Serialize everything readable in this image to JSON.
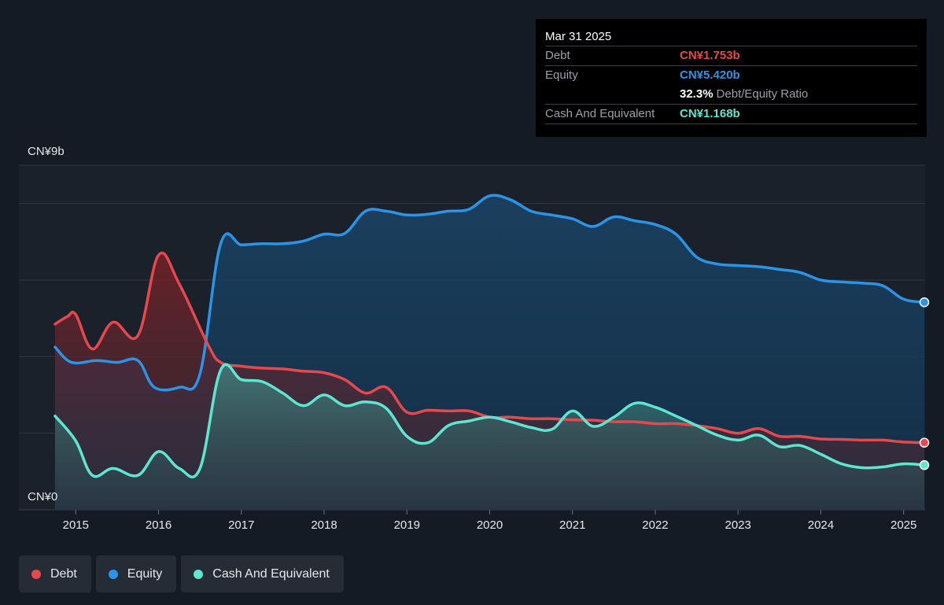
{
  "tooltip": {
    "date": "Mar 31 2025",
    "debt_label": "Debt",
    "debt_value": "CN¥1.753b",
    "equity_label": "Equity",
    "equity_value": "CN¥5.420b",
    "ratio_value": "32.3%",
    "ratio_label": "Debt/Equity Ratio",
    "cash_label": "Cash And Equivalent",
    "cash_value": "CN¥1.168b"
  },
  "legend": [
    {
      "label": "Debt",
      "color": "#e5484d"
    },
    {
      "label": "Equity",
      "color": "#2b94e6"
    },
    {
      "label": "Cash And Equivalent",
      "color": "#5ee6d0"
    }
  ],
  "chart_data": {
    "type": "area",
    "y_axis_labels": [
      "CN¥9b",
      "CN¥0"
    ],
    "ylim": [
      0,
      9
    ],
    "xlim": [
      2014.75,
      2025.25
    ],
    "x_ticks": [
      "2015",
      "2016",
      "2017",
      "2018",
      "2019",
      "2020",
      "2021",
      "2022",
      "2023",
      "2024",
      "2025"
    ],
    "grid": true,
    "legend_position": "bottom-left",
    "colors": {
      "debt": "#e5484d",
      "equity": "#2b94e6",
      "cash": "#5ee6d0"
    },
    "series": [
      {
        "name": "Debt",
        "key": "debt",
        "x": [
          2014.75,
          2014.9,
          2015.0,
          2015.2,
          2015.45,
          2015.75,
          2016.0,
          2016.25,
          2016.6,
          2016.75,
          2017.0,
          2017.25,
          2017.5,
          2017.75,
          2018.0,
          2018.25,
          2018.5,
          2018.75,
          2019.0,
          2019.25,
          2019.5,
          2019.75,
          2020.0,
          2020.25,
          2020.5,
          2020.75,
          2021.0,
          2021.25,
          2021.5,
          2021.75,
          2022.0,
          2022.25,
          2022.5,
          2022.75,
          2023.0,
          2023.25,
          2023.5,
          2023.75,
          2024.0,
          2024.25,
          2024.5,
          2024.75,
          2025.0,
          2025.25
        ],
        "values": [
          4.85,
          5.05,
          5.1,
          4.2,
          4.9,
          4.55,
          6.65,
          5.9,
          4.3,
          3.85,
          3.75,
          3.7,
          3.68,
          3.62,
          3.58,
          3.4,
          3.05,
          3.2,
          2.55,
          2.6,
          2.58,
          2.58,
          2.42,
          2.42,
          2.38,
          2.38,
          2.35,
          2.34,
          2.3,
          2.3,
          2.25,
          2.25,
          2.2,
          2.12,
          2.0,
          2.12,
          1.92,
          1.92,
          1.85,
          1.84,
          1.82,
          1.82,
          1.77,
          1.753
        ]
      },
      {
        "name": "Equity",
        "key": "equity",
        "x": [
          2014.75,
          2014.95,
          2015.25,
          2015.5,
          2015.75,
          2015.95,
          2016.25,
          2016.5,
          2016.75,
          2017.0,
          2017.25,
          2017.5,
          2017.75,
          2018.0,
          2018.25,
          2018.5,
          2018.75,
          2019.0,
          2019.25,
          2019.5,
          2019.75,
          2020.0,
          2020.25,
          2020.5,
          2020.75,
          2021.0,
          2021.25,
          2021.5,
          2021.75,
          2022.0,
          2022.25,
          2022.5,
          2022.75,
          2023.0,
          2023.25,
          2023.5,
          2023.75,
          2024.0,
          2024.25,
          2024.5,
          2024.75,
          2025.0,
          2025.25
        ],
        "values": [
          4.25,
          3.85,
          3.9,
          3.85,
          3.9,
          3.2,
          3.2,
          3.55,
          6.95,
          6.92,
          6.95,
          6.95,
          7.02,
          7.2,
          7.22,
          7.8,
          7.8,
          7.7,
          7.72,
          7.8,
          7.85,
          8.2,
          8.1,
          7.8,
          7.7,
          7.6,
          7.4,
          7.65,
          7.55,
          7.45,
          7.2,
          6.6,
          6.42,
          6.38,
          6.35,
          6.28,
          6.2,
          6.0,
          5.95,
          5.92,
          5.85,
          5.5,
          5.42
        ]
      },
      {
        "name": "Cash And Equivalent",
        "key": "cash",
        "x": [
          2014.75,
          2015.0,
          2015.2,
          2015.45,
          2015.75,
          2016.0,
          2016.25,
          2016.5,
          2016.75,
          2017.0,
          2017.25,
          2017.5,
          2017.75,
          2018.0,
          2018.25,
          2018.5,
          2018.75,
          2019.0,
          2019.25,
          2019.5,
          2019.75,
          2020.0,
          2020.25,
          2020.5,
          2020.75,
          2021.0,
          2021.25,
          2021.5,
          2021.75,
          2022.0,
          2022.25,
          2022.5,
          2022.75,
          2023.0,
          2023.25,
          2023.5,
          2023.75,
          2024.0,
          2024.25,
          2024.5,
          2024.75,
          2025.0,
          2025.25
        ],
        "values": [
          2.45,
          1.8,
          0.9,
          1.08,
          0.9,
          1.52,
          1.08,
          1.08,
          3.65,
          3.4,
          3.35,
          3.05,
          2.72,
          3.0,
          2.72,
          2.82,
          2.65,
          1.92,
          1.75,
          2.2,
          2.32,
          2.42,
          2.3,
          2.15,
          2.1,
          2.58,
          2.18,
          2.42,
          2.78,
          2.68,
          2.45,
          2.2,
          1.95,
          1.82,
          1.95,
          1.65,
          1.68,
          1.45,
          1.2,
          1.1,
          1.12,
          1.2,
          1.168
        ]
      }
    ]
  }
}
